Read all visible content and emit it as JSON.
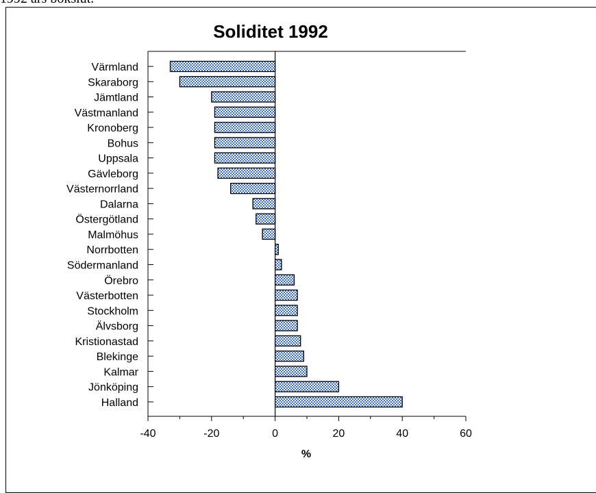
{
  "header": {
    "text": "1992 års bokslut."
  },
  "chart_data": {
    "type": "bar",
    "orientation": "horizontal",
    "title": "Soliditet 1992",
    "xlabel": "%",
    "ylabel": "",
    "xlim": [
      -40,
      60
    ],
    "xticks": [
      "-40",
      "-20",
      "0",
      "20",
      "40",
      "60"
    ],
    "grid": false,
    "bar_pattern_colors": {
      "outline": "#000000",
      "fill_dots": "#3a6fd8",
      "fill_bg": "#ffffff"
    },
    "categories": [
      "Värmland",
      "Skaraborg",
      "Jämtland",
      "Västmanland",
      "Kronoberg",
      "Bohus",
      "Uppsala",
      "Gävleborg",
      "Västernorrland",
      "Dalarna ",
      "Östergötland",
      "Malmöhus",
      "Norrbotten",
      "Södermanland",
      "Örebro",
      "Västerbotten",
      "Stockholm",
      "Älvsborg",
      "Kristionastad",
      "Blekinge",
      "Kalmar",
      "Jönköping",
      "Halland"
    ],
    "values": [
      -33,
      -30,
      -20,
      -19,
      -19,
      -19,
      -19,
      -18,
      -14,
      -7,
      -6,
      -4,
      1,
      2,
      6,
      7,
      7,
      7,
      8,
      9,
      10,
      20,
      40
    ]
  }
}
